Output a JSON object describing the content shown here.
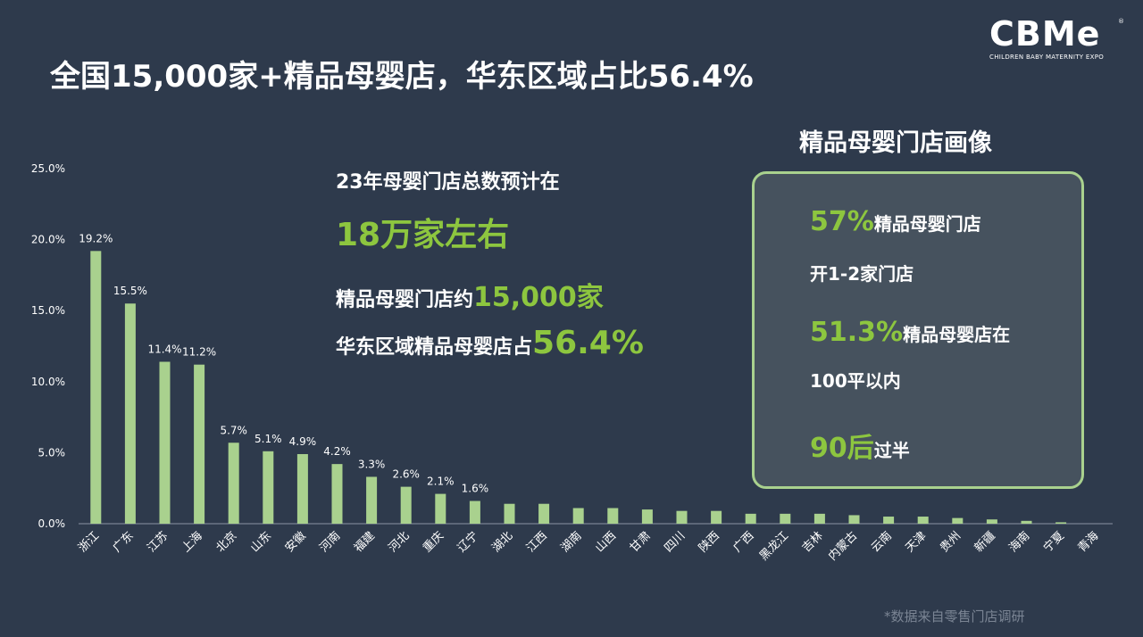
{
  "title": "全国15,000家+精品母婴店，华东区域占比56.4%",
  "logo": {
    "mark": "CBMe",
    "reg": "®",
    "subtitle": "CHILDREN BABY MATERNITY EXPO"
  },
  "stats": {
    "line1": "23年母婴门店总数预计在",
    "line2": "18万家左右",
    "line3_prefix": "精品母婴门店约",
    "line3_value": "15,000家",
    "line4_prefix": "华东区域精品母婴店占",
    "line4_value": "56.4%"
  },
  "panel": {
    "title": "精品母婴门店画像",
    "item1_value": "57%",
    "item1_text": "精品母婴门店",
    "item1_sub_green": "开1-2家",
    "item1_sub_text": "门店",
    "item2_value": "51.3%",
    "item2_text": "精品母婴店在",
    "item2_sub_green": "100平",
    "item2_sub_text": "以内",
    "item3_value": "90后",
    "item3_text": "过半"
  },
  "footnote": "*数据来自零售门店调研",
  "colors": {
    "bar": "#a9d18e",
    "accent": "#8dc63f",
    "background": "#2e3a4c",
    "panel": "#46525e"
  },
  "chart_data": {
    "type": "bar",
    "categories": [
      "浙江",
      "广东",
      "江苏",
      "上海",
      "北京",
      "山东",
      "安徽",
      "河南",
      "福建",
      "河北",
      "重庆",
      "辽宁",
      "湖北",
      "江西",
      "湖南",
      "山西",
      "甘肃",
      "四川",
      "陕西",
      "广西",
      "黑龙江",
      "吉林",
      "内蒙古",
      "云南",
      "天津",
      "贵州",
      "新疆",
      "海南",
      "宁夏",
      "青海"
    ],
    "values": [
      19.2,
      15.5,
      11.4,
      11.2,
      5.7,
      5.1,
      4.9,
      4.2,
      3.3,
      2.6,
      2.1,
      1.6,
      1.4,
      1.4,
      1.1,
      1.1,
      1.0,
      0.9,
      0.9,
      0.7,
      0.7,
      0.7,
      0.6,
      0.5,
      0.5,
      0.4,
      0.3,
      0.2,
      0.1,
      0.0
    ],
    "labels": [
      "19.2%",
      "15.5%",
      "11.4%",
      "11.2%",
      "5.7%",
      "5.1%",
      "4.9%",
      "4.2%",
      "3.3%",
      "2.6%",
      "2.1%",
      "1.6%"
    ],
    "yticks": [
      "0.0%",
      "5.0%",
      "10.0%",
      "15.0%",
      "20.0%",
      "25.0%"
    ],
    "ylim": [
      0,
      25
    ],
    "grid": false
  }
}
